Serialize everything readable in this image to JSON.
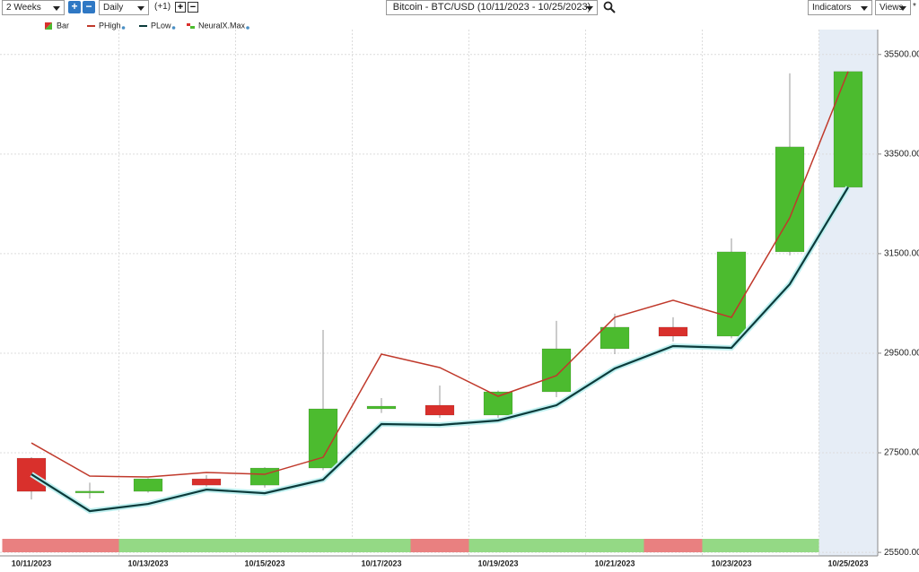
{
  "toolbar": {
    "period": "2 Weeks",
    "interval": "Daily",
    "offset": "(+1)",
    "indicators": "Indicators",
    "views": "Views",
    "star": "*"
  },
  "chart_data": {
    "type": "candlestick",
    "title": "Bitcoin - BTC/USD (10/11/2023 - 10/25/2023)",
    "categories": [
      "10/11/2023",
      null,
      "10/13/2023",
      null,
      "10/15/2023",
      null,
      "10/17/2023",
      null,
      "10/19/2023",
      null,
      "10/21/2023",
      null,
      "10/23/2023",
      null,
      "10/25/2023"
    ],
    "candles": {
      "name": "Bar",
      "up_color": "#4cbb2f",
      "down_color": "#d9302c",
      "open": [
        27392,
        26700,
        26725,
        26977,
        26850,
        27194,
        28383,
        28455,
        28257,
        28725,
        29590,
        30023,
        29842,
        31536,
        32833
      ],
      "high": [
        27410,
        26900,
        26990,
        27050,
        27210,
        29968,
        28600,
        28851,
        28750,
        30149,
        30293,
        30221,
        31806,
        35122,
        35158
      ],
      "low": [
        26563,
        26580,
        26700,
        26820,
        26800,
        27150,
        28300,
        28200,
        28149,
        28617,
        29482,
        29734,
        29800,
        31464,
        32833
      ],
      "close": [
        26725,
        26730,
        26977,
        26850,
        27194,
        28383,
        28437,
        28257,
        28725,
        29590,
        30023,
        29842,
        31536,
        33644,
        35158
      ]
    },
    "series": [
      {
        "name": "PHigh",
        "color": "#c0392b",
        "values": [
          27698,
          27032,
          27014,
          27104,
          27068,
          27410,
          29482,
          29212,
          28635,
          29050,
          30221,
          30563,
          30221,
          32221,
          35158
        ]
      },
      {
        "name": "PLow",
        "color": "#0b3b3b",
        "values": [
          27068,
          26329,
          26473,
          26761,
          26689,
          26959,
          28077,
          28059,
          28149,
          28455,
          29194,
          29644,
          29608,
          30887,
          32833
        ]
      }
    ],
    "signal": {
      "name": "NeuralX.Max",
      "colors": [
        "#e98080",
        "#e98080",
        "#94d985",
        "#94d985",
        "#94d985",
        "#94d985",
        "#94d985",
        "#e98080",
        "#94d985",
        "#94d985",
        "#94d985",
        "#e98080",
        "#94d985",
        "#94d985",
        null
      ]
    },
    "ylim": [
      25430,
      36000
    ],
    "yticks": [
      {
        "value": 25500,
        "label": "25500.00"
      },
      {
        "value": 27500,
        "label": "27500.00"
      },
      {
        "value": 29500,
        "label": "29500.00"
      },
      {
        "value": 31500,
        "label": "31500.00"
      },
      {
        "value": 33500,
        "label": "33500.00"
      },
      {
        "value": 35500,
        "label": "35500.00"
      }
    ],
    "grid": true
  }
}
